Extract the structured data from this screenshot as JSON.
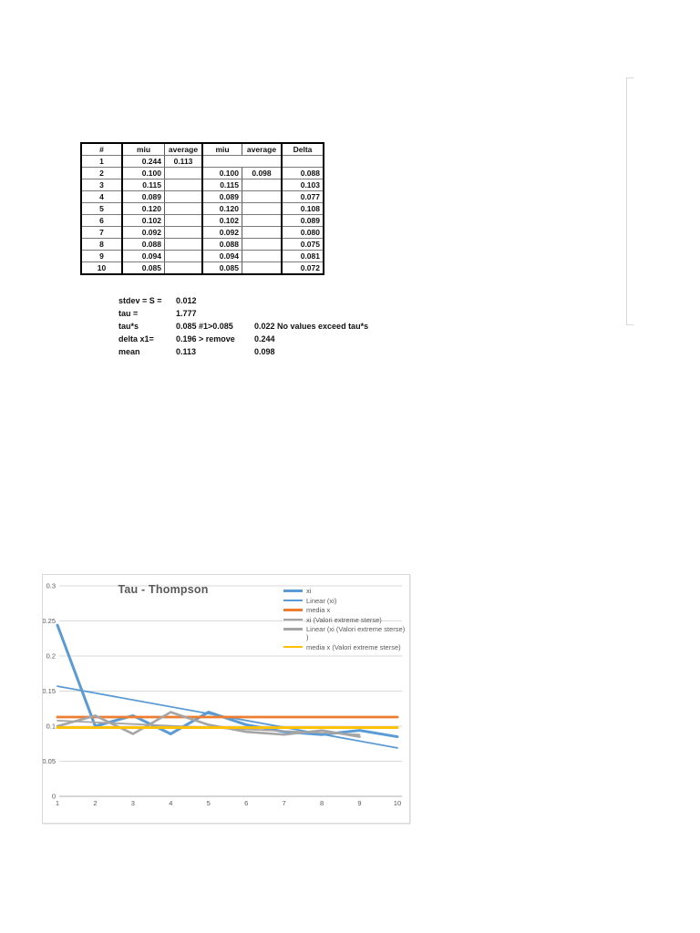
{
  "table": {
    "headers": [
      "#",
      "miu",
      "average",
      "miu",
      "average",
      "Delta"
    ],
    "rows": [
      [
        "1",
        "0.244",
        "0.113",
        "",
        "",
        ""
      ],
      [
        "2",
        "0.100",
        "",
        "0.100",
        "0.098",
        "0.088"
      ],
      [
        "3",
        "0.115",
        "",
        "0.115",
        "",
        "0.103"
      ],
      [
        "4",
        "0.089",
        "",
        "0.089",
        "",
        "0.077"
      ],
      [
        "5",
        "0.120",
        "",
        "0.120",
        "",
        "0.108"
      ],
      [
        "6",
        "0.102",
        "",
        "0.102",
        "",
        "0.089"
      ],
      [
        "7",
        "0.092",
        "",
        "0.092",
        "",
        "0.080"
      ],
      [
        "8",
        "0.088",
        "",
        "0.088",
        "",
        "0.075"
      ],
      [
        "9",
        "0.094",
        "",
        "0.094",
        "",
        "0.081"
      ],
      [
        "10",
        "0.085",
        "",
        "0.085",
        "",
        "0.072"
      ]
    ]
  },
  "stats": {
    "rows": [
      {
        "label": "stdev = S =",
        "value": "0.012",
        "extra": ""
      },
      {
        "label": "tau =",
        "value": "1.777",
        "extra": ""
      },
      {
        "label": "tau*s",
        "value": "0.085 #1>0.085",
        "extra": "0.022 No values exceed tau*s"
      },
      {
        "label": "delta x1=",
        "value": "0.196 > remove",
        "extra": "0.244"
      },
      {
        "label": "mean",
        "value": "0.113",
        "extra": "0.098"
      }
    ]
  },
  "chart_data": {
    "type": "line",
    "title": "Tau - Thompson",
    "xlabel": "",
    "ylabel": "",
    "x_ticks": [
      1,
      2,
      3,
      4,
      5,
      6,
      7,
      8,
      9,
      10
    ],
    "xlim": [
      1,
      10
    ],
    "ylim": [
      0,
      0.3
    ],
    "y_ticks": [
      0,
      0.05,
      0.1,
      0.15,
      0.2,
      0.25,
      0.3
    ],
    "y_tick_labels": [
      "0",
      "0.05",
      "0.1",
      "0.15",
      "0.2",
      "0.25",
      "0.3"
    ],
    "grid": true,
    "legend_position": "top-right",
    "colors": {
      "blue": "#5B9BD5",
      "orange": "#ED7D31",
      "gray": "#A5A5A5",
      "gold": "#FFC000",
      "gridline": "#D9D9D9",
      "axis": "#BFBFBF",
      "text": "#595959"
    },
    "series": [
      {
        "name": "xi",
        "color": "#5B9BD5",
        "width": 3,
        "x": [
          1,
          2,
          3,
          4,
          5,
          6,
          7,
          8,
          9,
          10
        ],
        "y": [
          0.244,
          0.1,
          0.115,
          0.089,
          0.12,
          0.102,
          0.092,
          0.088,
          0.094,
          0.085
        ]
      },
      {
        "name": "Linear (xi)",
        "color": "#5B9BD5",
        "width": 1.8,
        "x": [
          1,
          10
        ],
        "y": [
          0.157,
          0.069
        ]
      },
      {
        "name": "media x",
        "color": "#ED7D31",
        "width": 2.8,
        "x": [
          1,
          10
        ],
        "y": [
          0.113,
          0.113
        ]
      },
      {
        "name": "xi (Valori extreme sterse)",
        "color": "#A5A5A5",
        "width": 2.6,
        "x": [
          1,
          2,
          3,
          4,
          5,
          6,
          7,
          8,
          9
        ],
        "y": [
          0.1,
          0.115,
          0.089,
          0.12,
          0.102,
          0.092,
          0.088,
          0.094,
          0.085
        ]
      },
      {
        "name": "Linear (xi (Valori extreme sterse) )",
        "color": "#A5A5A5",
        "width": 1.8,
        "x": [
          1,
          9
        ],
        "y": [
          0.108,
          0.088
        ]
      },
      {
        "name": "media x (Valori extreme sterse)",
        "color": "#FFC000",
        "width": 2.8,
        "x": [
          1,
          10
        ],
        "y": [
          0.098,
          0.098
        ]
      }
    ]
  }
}
